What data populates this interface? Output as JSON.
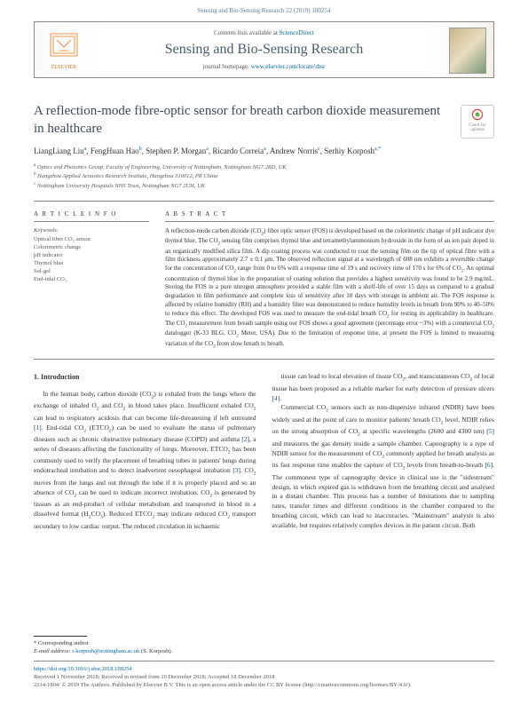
{
  "header_ref": "Sensing and Bio-Sensing Research 22 (2019) 100254",
  "topbox": {
    "contents_prefix": "Contents lists available at ",
    "contents_link": "ScienceDirect",
    "journal_name": "Sensing and Bio-Sensing Research",
    "homepage_prefix": "journal homepage: ",
    "homepage_url": "www.elsevier.com/locate/sbsr",
    "elsevier_label": "ELSEVIER"
  },
  "title": "A reflection-mode fibre-optic sensor for breath carbon dioxide measurement in healthcare",
  "check_updates_label": "Check for updates",
  "authors_html": "LiangLiang Liu<sup>a</sup>, FengHuan Hao<sup>b</sup>, Stephen P. Morgan<sup>a</sup>, Ricardo Correia<sup>a</sup>, Andrew Norris<sup>c</sup>, Serhiy Korposh<sup>a,*</sup>",
  "affiliations": [
    "a Optics and Photonics Group, Faculty of Engineering, University of Nottingham, Nottingham NG7 2RD, UK",
    "b Hangzhou Applied Acoustics Research Institute, Hangzhou 310012, PR China",
    "c Nottingham University Hospitals NHS Trust, Nottingham NG7 2UH, UK"
  ],
  "article_info_heading": "A R T I C L E  I N F O",
  "keywords_label": "Keywords:",
  "keywords": [
    "Optical fibre CO₂ sensor",
    "Colorimetric change",
    "pH indicator",
    "Thymol blue",
    "Sol-gel",
    "End-tidal CO₂"
  ],
  "abstract_heading": "A B S T R A C T",
  "abstract_text": "A reflection-mode carbon dioxide (CO₂) fibre optic sensor (FOS) is developed based on the colorimetric change of pH indicator dye thymol blue. The CO₂ sensing film comprises thymol blue and tetramethylammonium hydroxide in the form of an ion pair doped in an organically modified silica film. A dip coating process was conducted to coat the sensing film on the tip of optical fibre with a film thickness approximately 2.7 ± 0.1 μm. The observed reflection signal at a wavelength of 608 nm exhibits a reversible change for the concentration of CO₂ range from 0 to 6% with a response time of 19 s and recovery time of 170 s for 6% of CO₂. An optimal concentration of thymol blue in the preparation of coating solution that provides a highest sensitivity was found to be 2.9 mg/mL. Storing the FOS in a pure nitrogen atmosphere provided a stable film with a shelf-life of over 15 days as compared to a gradual degradation in film performance and complete loss of sensitivity after 10 days with storage in ambient air. The FOS response is affected by relative humidity (RH) and a humidity filter was demonstrated to reduce humidity levels in breath from 90% to 40–50% to reduce this effect. The developed FOS was used to measure the end-tidal breath CO₂ for testing its applicability in healthcare. The CO₂ measurement from breath sample using our FOS shows a good agreement (percentage error ~3%) with a commercial CO₂ datalogger (K-33 BLG, CO₂ Meter, USA). Due to the limitation of response time, at present the FOS is limited to measuring variation of the CO₂ from slow breath to breath.",
  "section1_heading": "1. Introduction",
  "col1_text": "In the human body, carbon dioxide (CO₂) is exhaled from the lungs where the exchange of inhaled O₂ and CO₂ in blood takes place. Insufficient exhaled CO₂ can lead to respiratory acidosis that can become life-threatening if left untreated [1]. End-tidal CO₂ (ETCO₂) can be used to evaluate the status of pulmonary diseases such as chronic obstructive pulmonary disease (COPD) and asthma [2], a series of diseases affecting the functionality of lungs. Moreover, ETCO₂ has been commonly used to verify the placement of breathing tubes in patients' lungs during endotracheal intubation and to detect inadvertent oesophageal intubation [3]. CO₂ moves from the lungs and out through the tube if it is properly placed and so an absence of CO₂ can be used to indicate incorrect intubation. CO₂ is generated by tissues as an end-product of cellular metabolism and transported in blood in a dissolved format (H₂CO₃). Reduced ETCO₂ may indicate reduced CO₂ transport secondary to low cardiac output. The reduced circulation in ischaemic",
  "col2_text": "tissue can lead to local elevation of tissue CO₂, and transcutaneous CO₂ of local tissue has been proposed as a reliable marker for early detection of pressure ulcers [4].\n\nCommercial CO₂ sensors such as non-dispersive infrared (NDIR) have been widely used at the point of care to monitor patients' breath CO₂ level. NDIR relies on the strong absorption of CO₂ at specific wavelengths (2600 and 4300 nm) [5] and measures the gas density inside a sample chamber. Capnography is a type of NDIR sensor for the measurement of CO₂ commonly applied for breath analysis as its fast response time enables the capture of CO₂ levels from breath-to-breath [6]. The commonest type of capnography device in clinical use is the \"sidestream\" design, in which expired gas is withdrawn from the breathing circuit and analysed in a distant chamber. This process has a number of limitations due to sampling rates, transfer times and different conditions in the chamber compared to the breathing circuit, which can lead to inaccuracies. \"Mainstream\" analysis is also available, but requires relatively complex devices in the patient circuit. Both",
  "footer": {
    "corr_label": "* Corresponding author.",
    "email_label": "E-mail address: ",
    "email": "s.korposh@nottingham.ac.uk",
    "email_suffix": " (S. Korposh).",
    "doi": "https://doi.org/10.1016/j.sbsr.2018.100254",
    "received": "Received 1 November 2018; Received in revised form 10 December 2018; Accepted 18 December 2018",
    "license": "2214-1804/ © 2019 The Authors. Published by Elsevier B.V. This is an open access article under the CC BY license (http://creativecommons.org/licenses/BY/4.0/)."
  }
}
